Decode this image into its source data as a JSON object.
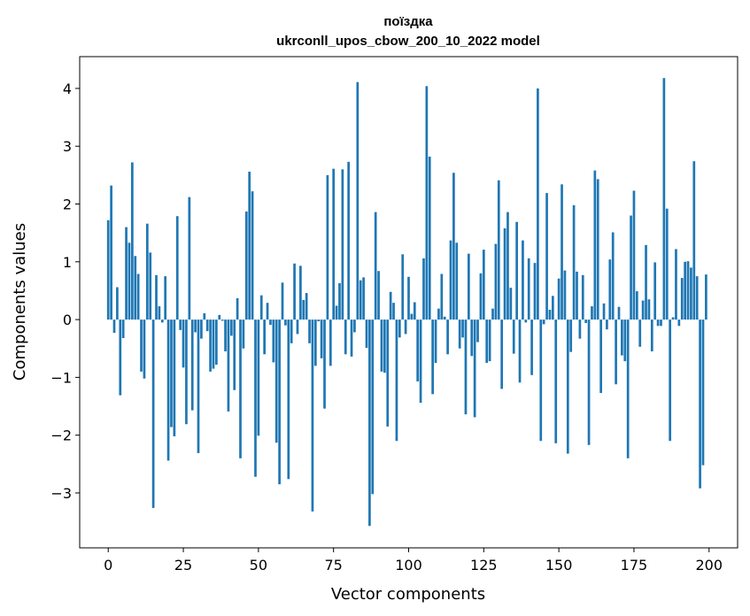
{
  "chart_data": {
    "type": "bar",
    "title_line1": "поїздка",
    "title_line2": "ukrconll_upos_cbow_200_10_2022 model",
    "xlabel": "Vector components",
    "ylabel": "Components values",
    "xlim": [
      -9.5,
      209.5
    ],
    "ylim": [
      -3.95,
      4.55
    ],
    "xticks": [
      0,
      25,
      50,
      75,
      100,
      125,
      150,
      175,
      200
    ],
    "yticks": [
      -3,
      -2,
      -1,
      0,
      1,
      2,
      3,
      4
    ],
    "xtick_labels": [
      "0",
      "25",
      "50",
      "75",
      "100",
      "125",
      "150",
      "175",
      "200"
    ],
    "ytick_labels": [
      "−3",
      "−2",
      "−1",
      "0",
      "1",
      "2",
      "3",
      "4"
    ],
    "bar_color": "#1f77b4",
    "grid": false,
    "x": [
      0,
      1,
      2,
      3,
      4,
      5,
      6,
      7,
      8,
      9,
      10,
      11,
      12,
      13,
      14,
      15,
      16,
      17,
      18,
      19,
      20,
      21,
      22,
      23,
      24,
      25,
      26,
      27,
      28,
      29,
      30,
      31,
      32,
      33,
      34,
      35,
      36,
      37,
      38,
      39,
      40,
      41,
      42,
      43,
      44,
      45,
      46,
      47,
      48,
      49,
      50,
      51,
      52,
      53,
      54,
      55,
      56,
      57,
      58,
      59,
      60,
      61,
      62,
      63,
      64,
      65,
      66,
      67,
      68,
      69,
      70,
      71,
      72,
      73,
      74,
      75,
      76,
      77,
      78,
      79,
      80,
      81,
      82,
      83,
      84,
      85,
      86,
      87,
      88,
      89,
      90,
      91,
      92,
      93,
      94,
      95,
      96,
      97,
      98,
      99,
      100,
      101,
      102,
      103,
      104,
      105,
      106,
      107,
      108,
      109,
      110,
      111,
      112,
      113,
      114,
      115,
      116,
      117,
      118,
      119,
      120,
      121,
      122,
      123,
      124,
      125,
      126,
      127,
      128,
      129,
      130,
      131,
      132,
      133,
      134,
      135,
      136,
      137,
      138,
      139,
      140,
      141,
      142,
      143,
      144,
      145,
      146,
      147,
      148,
      149,
      150,
      151,
      152,
      153,
      154,
      155,
      156,
      157,
      158,
      159,
      160,
      161,
      162,
      163,
      164,
      165,
      166,
      167,
      168,
      169,
      170,
      171,
      172,
      173,
      174,
      175,
      176,
      177,
      178,
      179,
      180,
      181,
      182,
      183,
      184,
      185,
      186,
      187,
      188,
      189,
      190,
      191,
      192,
      193,
      194,
      195,
      196,
      197,
      198,
      199
    ],
    "values": [
      1.72,
      2.32,
      -0.23,
      0.56,
      -1.31,
      -0.32,
      1.6,
      1.33,
      2.72,
      1.1,
      0.79,
      -0.9,
      -1.02,
      1.66,
      1.16,
      -3.26,
      0.77,
      0.23,
      -0.05,
      0.75,
      -2.44,
      -1.86,
      -2.02,
      1.79,
      -0.18,
      -0.83,
      -1.81,
      2.12,
      -1.57,
      -0.22,
      -2.31,
      -0.33,
      0.11,
      -0.2,
      -0.9,
      -0.85,
      -0.78,
      0.08,
      -0.02,
      -0.55,
      -1.59,
      -0.28,
      -1.22,
      0.37,
      -2.4,
      -0.5,
      1.87,
      2.56,
      2.22,
      -2.72,
      -2.01,
      0.42,
      -0.6,
      0.29,
      -0.09,
      -0.74,
      -2.13,
      -2.85,
      0.64,
      -0.1,
      -2.76,
      -0.41,
      0.97,
      -0.25,
      0.93,
      0.34,
      0.46,
      -0.41,
      -3.32,
      -0.8,
      -0.03,
      -0.67,
      -1.54,
      2.5,
      -0.8,
      2.61,
      0.24,
      0.63,
      2.6,
      -0.6,
      2.73,
      -0.64,
      -0.22,
      4.11,
      0.68,
      0.73,
      -0.49,
      -3.57,
      -3.02,
      1.86,
      0.84,
      -0.9,
      -0.92,
      -1.85,
      0.48,
      0.29,
      -2.1,
      -0.31,
      1.13,
      -0.25,
      0.74,
      0.1,
      0.3,
      -1.07,
      -1.44,
      1.06,
      4.04,
      2.82,
      -1.29,
      -0.75,
      0.19,
      0.79,
      0.05,
      -0.6,
      1.37,
      2.54,
      1.33,
      -0.5,
      -0.31,
      -1.64,
      1.14,
      -0.63,
      -1.69,
      -0.39,
      0.8,
      1.21,
      -0.75,
      -0.72,
      0.19,
      1.31,
      2.41,
      -1.2,
      1.58,
      1.86,
      0.55,
      -0.59,
      1.69,
      -1.09,
      1.37,
      -0.05,
      1.06,
      -0.96,
      0.98,
      4.0,
      -2.1,
      -0.08,
      2.19,
      0.17,
      0.41,
      -2.14,
      0.71,
      2.34,
      0.85,
      -2.32,
      -0.56,
      1.98,
      0.83,
      -0.33,
      0.77,
      -0.06,
      -2.17,
      0.23,
      2.58,
      2.43,
      -1.27,
      0.28,
      -0.17,
      1.04,
      1.51,
      -1.12,
      0.22,
      -0.62,
      -0.72,
      -2.4,
      1.8,
      2.23,
      0.49,
      -0.47,
      0.33,
      1.29,
      0.35,
      -0.55,
      0.99,
      -0.11,
      -0.11,
      4.18,
      1.92,
      -2.1,
      0.04,
      1.22,
      -0.11,
      0.72,
      1.0,
      1.01,
      0.9,
      2.74,
      0.75,
      -2.92,
      -2.52,
      0.78
    ]
  }
}
